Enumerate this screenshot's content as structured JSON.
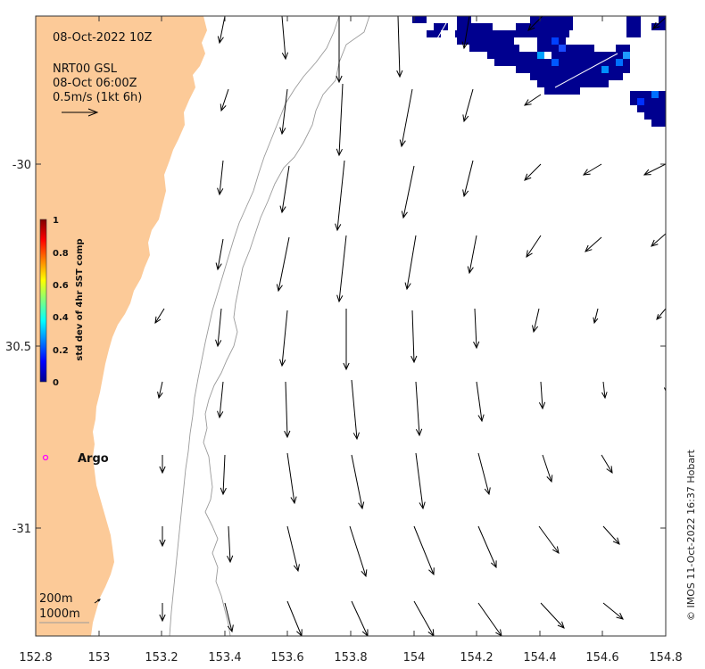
{
  "map": {
    "date_label": "08-Oct-2022 10Z",
    "product_line1": "NRT00 GSL",
    "product_line2": "08-Oct 06:00Z",
    "scale_label": "0.5m/s (1kt 6h)",
    "argo_label": "Argo",
    "contour_label_200": "200m",
    "contour_label_1000": "1000m",
    "credit": "© IMOS 11-Oct-2022 16:37 Hobart",
    "colors": {
      "land": "#fcca98",
      "arrow": "#000000",
      "contour": "#9a9a9a",
      "argo": "#ff00ff"
    }
  },
  "axes": {
    "x_ticks": [
      "152.8",
      "153",
      "153.2",
      "153.4",
      "153.6",
      "153.8",
      "154",
      "154.2",
      "154.4",
      "154.6",
      "154.8"
    ],
    "y_ticks": [
      "-30",
      "30.5",
      "-31"
    ]
  },
  "colorbar": {
    "title": "std dev of 4hr SST comp",
    "ticks": [
      "1",
      "0.8",
      "0.6",
      "0.4",
      "0.2",
      "0"
    ],
    "colormap": "jet",
    "range": [
      0,
      1
    ]
  }
}
